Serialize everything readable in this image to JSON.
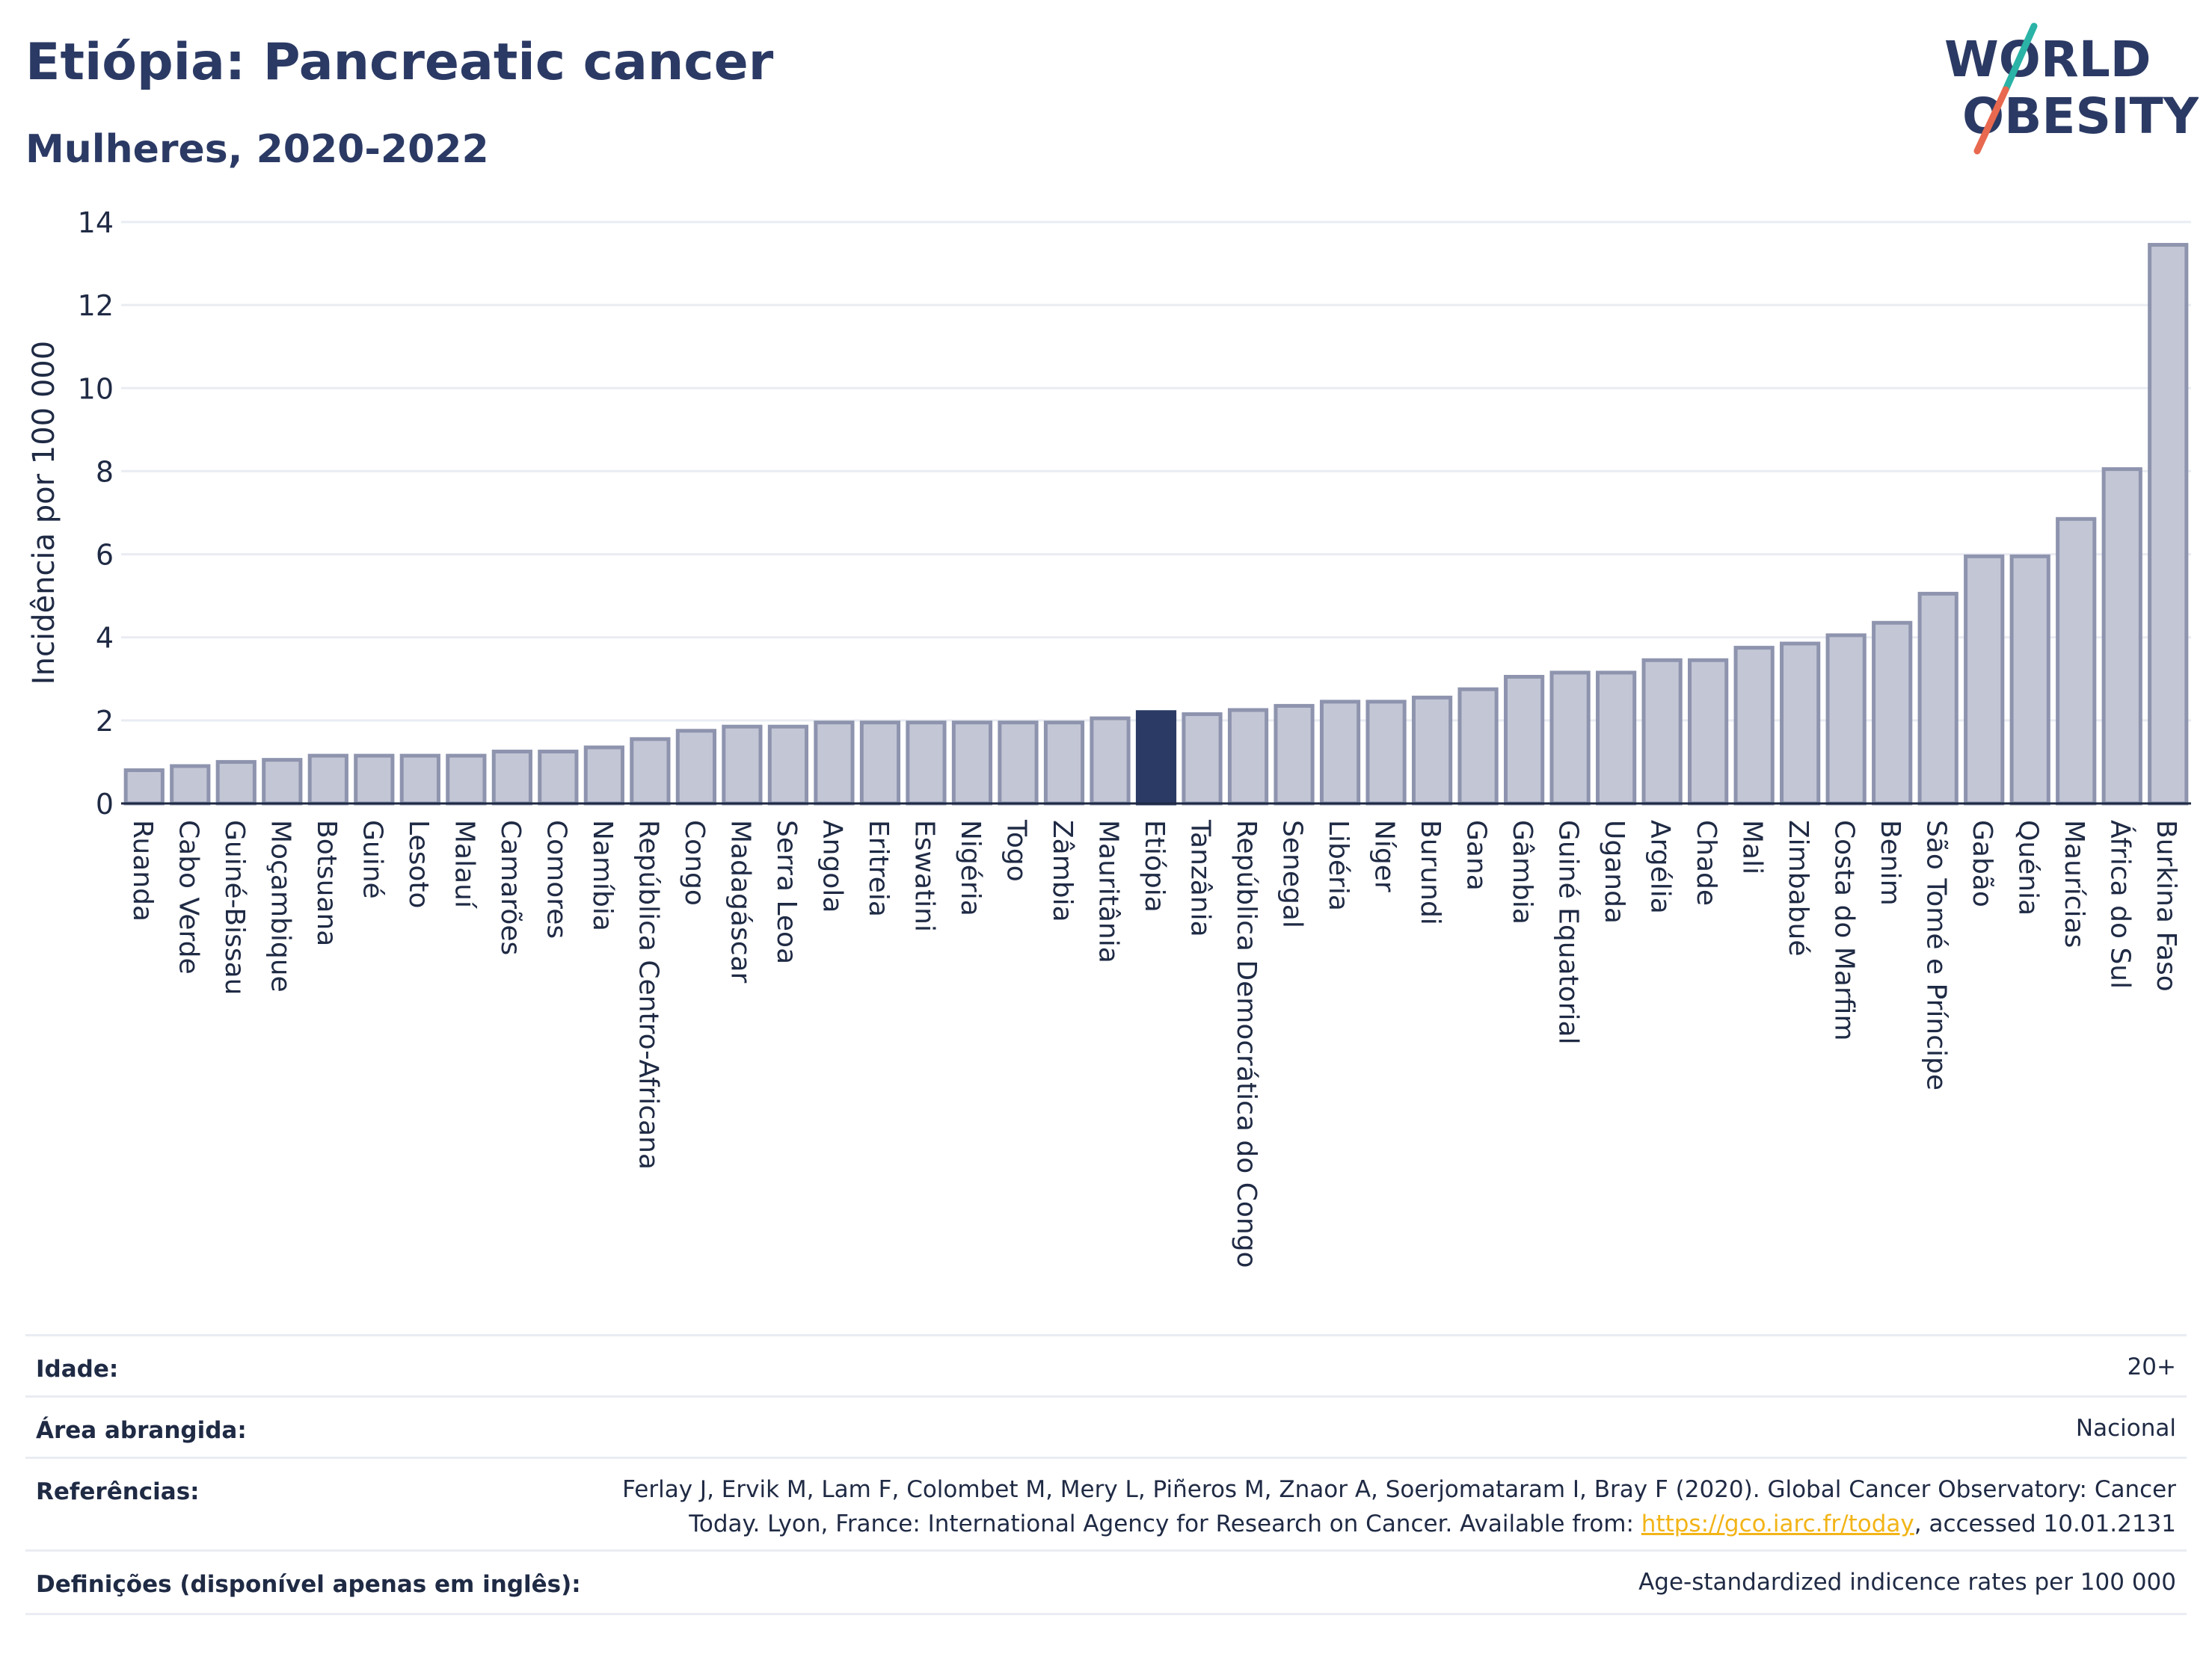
{
  "header": {
    "title": "Etiópia: Pancreatic cancer",
    "subtitle": "Mulheres, 2020-2022"
  },
  "logo": {
    "line1": "WORLD",
    "line2": "OBESITY",
    "accent_colors": [
      "#2ab3a6",
      "#e8694f"
    ]
  },
  "colors": {
    "bar": "#c3c6d5",
    "bar_stroke": "#8e94ae",
    "highlight": "#2b3a64",
    "grid": "#e9ecf2"
  },
  "chart_data": {
    "type": "bar",
    "ylabel": "Incidência por 100 000",
    "ylim": [
      0,
      14
    ],
    "yticks": [
      0,
      2,
      4,
      6,
      8,
      10,
      12,
      14
    ],
    "grid": true,
    "highlight": "Etiópia",
    "categories": [
      "Ruanda",
      "Cabo Verde",
      "Guiné-Bissau",
      "Moçambique",
      "Botsuana",
      "Guiné",
      "Lesoto",
      "Malauí",
      "Camarões",
      "Comores",
      "Namíbia",
      "República Centro-Africana",
      "Congo",
      "Madagáscar",
      "Serra Leoa",
      "Angola",
      "Eritreia",
      "Eswatini",
      "Nigéria",
      "Togo",
      "Zâmbia",
      "Mauritânia",
      "Etiópia",
      "Tanzânia",
      "República Democrática do Congo",
      "Senegal",
      "Libéria",
      "Níger",
      "Burundi",
      "Gana",
      "Gâmbia",
      "Guiné Equatorial",
      "Uganda",
      "Argélia",
      "Chade",
      "Mali",
      "Zimbabué",
      "Costa do Marfim",
      "Benim",
      "São Tomé e Príncipe",
      "Gabão",
      "Quénia",
      "Maurícias",
      "África do Sul",
      "Burkina Faso"
    ],
    "values": [
      0.8,
      0.9,
      1.0,
      1.05,
      1.15,
      1.15,
      1.15,
      1.15,
      1.25,
      1.25,
      1.35,
      1.55,
      1.75,
      1.85,
      1.85,
      1.95,
      1.95,
      1.95,
      1.95,
      1.95,
      1.95,
      2.05,
      2.2,
      2.15,
      2.25,
      2.35,
      2.45,
      2.45,
      2.55,
      2.75,
      3.05,
      3.15,
      3.15,
      3.45,
      3.45,
      3.75,
      3.85,
      4.05,
      4.35,
      5.05,
      5.95,
      5.95,
      6.85,
      8.05,
      13.45
    ]
  },
  "meta": {
    "age_label": "Idade:",
    "age_value": "20+",
    "area_label": "Área abrangida:",
    "area_value": "Nacional",
    "ref_label": "Referências:",
    "ref_line1": "Ferlay J, Ervik M, Lam F, Colombet M, Mery L, Piñeros M, Znaor A, Soerjomataram I, Bray F (2020). Global Cancer Observatory: Cancer",
    "ref_line2_pre": "Today. Lyon, France: International Agency for Research on Cancer. Available from: ",
    "ref_link": "https://gco.iarc.fr/today",
    "ref_line2_post": ", accessed 10.01.2131",
    "def_label": "Definições (disponível apenas em inglês):",
    "def_value": "Age-standardized indicence rates per 100 000"
  }
}
